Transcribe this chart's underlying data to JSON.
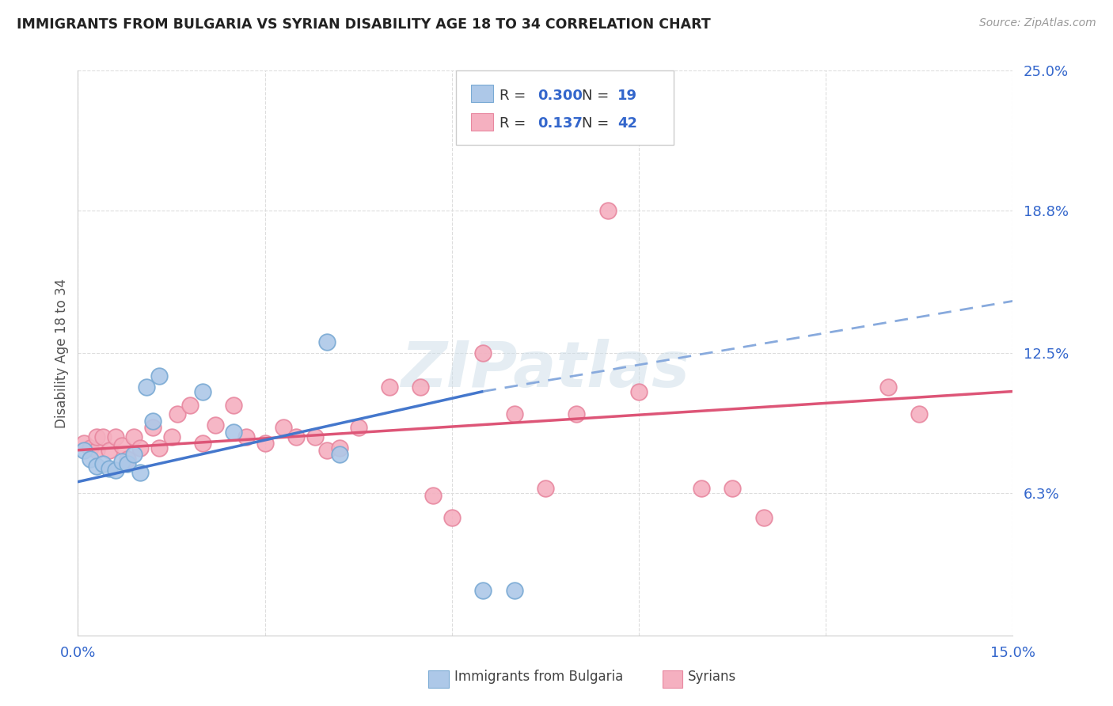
{
  "title": "IMMIGRANTS FROM BULGARIA VS SYRIAN DISABILITY AGE 18 TO 34 CORRELATION CHART",
  "source": "Source: ZipAtlas.com",
  "ylabel_label": "Disability Age 18 to 34",
  "xlim": [
    0.0,
    0.15
  ],
  "ylim": [
    0.0,
    0.25
  ],
  "xticks": [
    0.0,
    0.03,
    0.06,
    0.09,
    0.12,
    0.15
  ],
  "xtick_labels": [
    "0.0%",
    "",
    "",
    "",
    "",
    "15.0%"
  ],
  "ytick_labels_right": [
    "6.3%",
    "12.5%",
    "18.8%",
    "25.0%"
  ],
  "yticks_right": [
    0.063,
    0.125,
    0.188,
    0.25
  ],
  "bulgaria_color": "#adc8e8",
  "syrian_color": "#f5b0c0",
  "bulgaria_edge": "#7aaad4",
  "syrian_edge": "#e888a0",
  "trend_bulgaria_solid_color": "#4477cc",
  "trend_bulgaria_dash_color": "#88aadd",
  "trend_syrian_color": "#dd5577",
  "watermark": "ZIPatlas",
  "bulgaria_R": "0.300",
  "bulgaria_N": "19",
  "syrian_R": "0.137",
  "syrian_N": "42",
  "bulgaria_x": [
    0.001,
    0.002,
    0.003,
    0.004,
    0.005,
    0.006,
    0.007,
    0.008,
    0.009,
    0.01,
    0.011,
    0.012,
    0.013,
    0.02,
    0.025,
    0.04,
    0.042,
    0.065,
    0.07
  ],
  "bulgaria_y": [
    0.082,
    0.078,
    0.075,
    0.076,
    0.074,
    0.073,
    0.077,
    0.076,
    0.08,
    0.072,
    0.11,
    0.095,
    0.115,
    0.108,
    0.09,
    0.13,
    0.08,
    0.02,
    0.02
  ],
  "syrian_x": [
    0.001,
    0.002,
    0.003,
    0.003,
    0.004,
    0.005,
    0.006,
    0.007,
    0.008,
    0.009,
    0.01,
    0.012,
    0.013,
    0.015,
    0.016,
    0.018,
    0.02,
    0.022,
    0.025,
    0.027,
    0.03,
    0.033,
    0.035,
    0.038,
    0.04,
    0.042,
    0.045,
    0.05,
    0.055,
    0.057,
    0.06,
    0.065,
    0.07,
    0.075,
    0.08,
    0.085,
    0.09,
    0.1,
    0.105,
    0.11,
    0.13,
    0.135
  ],
  "syrian_y": [
    0.085,
    0.083,
    0.082,
    0.088,
    0.088,
    0.082,
    0.088,
    0.084,
    0.078,
    0.088,
    0.083,
    0.092,
    0.083,
    0.088,
    0.098,
    0.102,
    0.085,
    0.093,
    0.102,
    0.088,
    0.085,
    0.092,
    0.088,
    0.088,
    0.082,
    0.083,
    0.092,
    0.11,
    0.11,
    0.062,
    0.052,
    0.125,
    0.098,
    0.065,
    0.098,
    0.188,
    0.108,
    0.065,
    0.065,
    0.052,
    0.11,
    0.098
  ],
  "trend_b_x0": 0.0,
  "trend_b_y0": 0.068,
  "trend_b_x1_solid": 0.065,
  "trend_b_y1_solid": 0.108,
  "trend_b_x1_dash": 0.15,
  "trend_b_y1_dash": 0.148,
  "trend_s_x0": 0.0,
  "trend_s_y0": 0.082,
  "trend_s_x1": 0.15,
  "trend_s_y1": 0.108,
  "background_color": "#ffffff",
  "grid_color": "#dddddd"
}
